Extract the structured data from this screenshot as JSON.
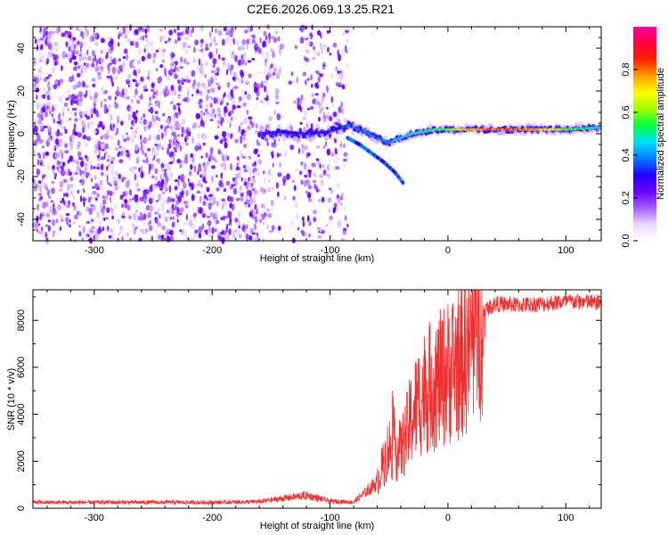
{
  "title": "C2E6.2026.069.13.25.R21",
  "chart_data": [
    {
      "type": "heatmap",
      "name": "spectrogram",
      "xlabel": "Height of straight line (km)",
      "ylabel": "Frequency (Hz)",
      "xlim": [
        -352,
        130
      ],
      "ylim": [
        -50,
        50
      ],
      "xticks": [
        -300,
        -200,
        -100,
        0,
        100
      ],
      "yticks": [
        -40,
        -20,
        0,
        20,
        40
      ],
      "colorbar": {
        "label": "Normalized spectral amplitude",
        "range": [
          0,
          1
        ],
        "ticks": [
          0,
          0.2,
          0.4,
          0.6,
          0.8
        ],
        "colormap": [
          "#ffffff",
          "#e8d8ff",
          "#a65cff",
          "#6a00ff",
          "#2000ff",
          "#0080ff",
          "#00e0ff",
          "#00ff40",
          "#a0ff00",
          "#ffff00",
          "#ffa000",
          "#ff2000",
          "#ff0040",
          "#ff00a0"
        ]
      },
      "noise_region": {
        "x": [
          -352,
          -85
        ],
        "gap_x": [
          -142,
          -128
        ],
        "amplitude": 0.15
      },
      "signal_ridge": {
        "x": [
          -160,
          -140,
          -120,
          -100,
          -85,
          -70,
          -60,
          -50,
          -40,
          -30,
          -20,
          -10,
          0,
          20,
          40,
          60,
          80,
          100,
          130
        ],
        "freq": [
          0,
          1,
          0,
          1,
          4,
          1,
          -2,
          -4,
          -2,
          0,
          1,
          2,
          2,
          2,
          2,
          2,
          2,
          2,
          3
        ],
        "amplitude": [
          0.25,
          0.3,
          0.3,
          0.3,
          0.35,
          0.35,
          0.35,
          0.4,
          0.45,
          0.5,
          0.5,
          0.55,
          0.6,
          0.75,
          0.8,
          0.8,
          0.75,
          0.6,
          0.5
        ]
      },
      "secondary_branch": {
        "x": [
          -85,
          -75,
          -65,
          -55,
          -45,
          -38
        ],
        "freq": [
          -2,
          -5,
          -9,
          -13,
          -18,
          -23
        ]
      }
    },
    {
      "type": "line",
      "name": "snr",
      "xlabel": "Height of straight line (km)",
      "ylabel": "SNR (10 * v/v)",
      "xlim": [
        -352,
        130
      ],
      "ylim": [
        0,
        9300
      ],
      "xticks": [
        -300,
        -200,
        -100,
        0,
        100
      ],
      "yticks": [
        0,
        2000,
        4000,
        6000,
        8000
      ],
      "color": "#ee3030",
      "envelope": {
        "x": [
          -352,
          -200,
          -160,
          -140,
          -120,
          -100,
          -80,
          -60,
          -50,
          -40,
          -30,
          -20,
          -10,
          0,
          10,
          20,
          30,
          40,
          60,
          80,
          100,
          130
        ],
        "y": [
          250,
          250,
          280,
          420,
          550,
          300,
          260,
          1100,
          2600,
          2400,
          4000,
          5000,
          5300,
          5800,
          6300,
          7000,
          8400,
          8700,
          8650,
          8700,
          8800,
          8750
        ]
      }
    }
  ]
}
